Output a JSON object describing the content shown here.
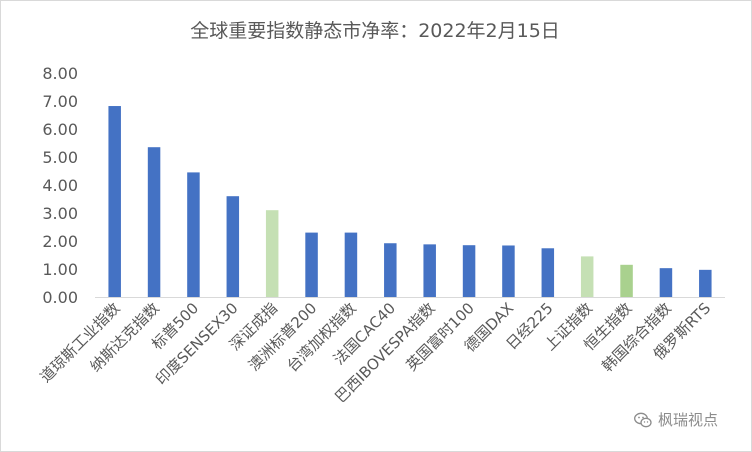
{
  "chart_data": {
    "type": "bar",
    "title": "全球重要指数静态市净率：2022年2月15日",
    "categories": [
      "道琼斯工业指数",
      "纳斯达克指数",
      "标普500",
      "印度SENSEX30",
      "深证成指",
      "澳洲标普200",
      "台湾加权指数",
      "法国CAC40",
      "巴西IBOVESPA指数",
      "英国富时100",
      "德国DAX",
      "日经225",
      "上证指数",
      "恒生指数",
      "韩国综合指数",
      "俄罗斯RTS"
    ],
    "values": [
      6.82,
      5.35,
      4.45,
      3.6,
      3.1,
      2.3,
      2.3,
      1.92,
      1.88,
      1.85,
      1.84,
      1.74,
      1.45,
      1.15,
      1.03,
      0.97
    ],
    "bar_colors": [
      "#4472c4",
      "#4472c4",
      "#4472c4",
      "#4472c4",
      "#c5e0b4",
      "#4472c4",
      "#4472c4",
      "#4472c4",
      "#4472c4",
      "#4472c4",
      "#4472c4",
      "#4472c4",
      "#c5e0b4",
      "#a9d18e",
      "#4472c4",
      "#4472c4"
    ],
    "ylim": [
      0,
      8
    ],
    "yticks": [
      "0.00",
      "1.00",
      "2.00",
      "3.00",
      "4.00",
      "5.00",
      "6.00",
      "7.00",
      "8.00"
    ],
    "grid": false,
    "xlabel": "",
    "ylabel": ""
  },
  "watermark": {
    "text": "枫瑞视点",
    "icon": "wechat-icon"
  }
}
